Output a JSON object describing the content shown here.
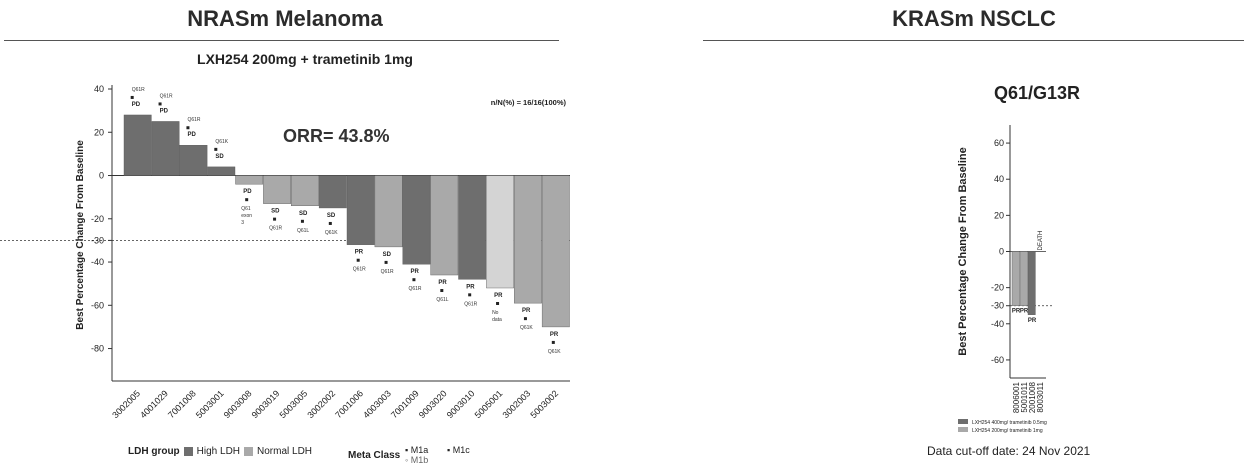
{
  "left": {
    "heading": "NRASm Melanoma",
    "subtitle": "LXH254 200mg + trametinib 1mg",
    "orr": "ORR= 43.8%",
    "nN": "n/N(%) = 16/16(100%)",
    "legend": {
      "group_title": "LDH group",
      "high": "High LDH",
      "normal": "Normal LDH",
      "meta_title": "Meta Class",
      "m1a": "M1a",
      "m1b": "M1b",
      "m1c": "M1c"
    }
  },
  "right": {
    "heading": "KRASm NSCLC",
    "chart_title": "Q61/G13R",
    "legend": {
      "dark": "LXH254 400mg/ trametinib 0.5mg",
      "light": "LXH254 200mg/ trametinib 1mg"
    },
    "cutoff": "Data cut-off date: 24 Nov 2021"
  },
  "colors": {
    "high_ldh": "#6e6e6e",
    "normal_ldh": "#a9a9a9",
    "no_data": "#d4d4d4",
    "axis": "#333333"
  },
  "chart_data": [
    {
      "type": "bar",
      "title": "LXH254 200mg + trametinib 1mg",
      "ylabel": "Best Percentage Change From Baseline",
      "ylim": [
        -95,
        40
      ],
      "yticks": [
        40,
        20,
        0,
        -20,
        -30,
        -40,
        -60,
        -80
      ],
      "reference_line": -30,
      "categories": [
        "3002005",
        "4001029",
        "7001008",
        "5003001",
        "9003008",
        "9003019",
        "5003005",
        "3002002",
        "7001006",
        "4003003",
        "7001009",
        "9003020",
        "9003010",
        "5005001",
        "3002003",
        "5003002"
      ],
      "values": [
        28,
        25,
        14,
        4,
        -4,
        -13,
        -14,
        -15,
        -32,
        -33,
        -41,
        -46,
        -48,
        -52,
        -59,
        -70
      ],
      "ldh_group": [
        "high",
        "high",
        "high",
        "high",
        "normal",
        "normal",
        "normal",
        "high",
        "high",
        "normal",
        "high",
        "normal",
        "high",
        "no_data",
        "normal",
        "normal"
      ],
      "responses": [
        "PD",
        "PD",
        "PD",
        "SD",
        "PD",
        "SD",
        "SD",
        "SD",
        "PR",
        "SD",
        "PR",
        "PR",
        "PR",
        "PR",
        "PR",
        "PR"
      ],
      "mutations": [
        "Q61R",
        "Q61R",
        "Q61R",
        "Q61K",
        "Q61 exon 3",
        "Q61R",
        "Q61L",
        "Q61K",
        "Q61R",
        "Q61R",
        "Q61R",
        "Q61L",
        "Q61R",
        "No data",
        "Q61K",
        "Q61K"
      ],
      "legend": [
        "High LDH",
        "Normal LDH"
      ]
    },
    {
      "type": "bar",
      "title": "Q61/G13R",
      "ylabel": "Best Percentage Change From Baseline",
      "ylim": [
        -70,
        70
      ],
      "yticks": [
        60,
        40,
        20,
        0,
        -20,
        -30,
        -40,
        -60
      ],
      "reference_line": -30,
      "categories": [
        "8006001",
        "5001011",
        "2001008",
        "8003011"
      ],
      "values": [
        -30,
        -30,
        -35,
        0
      ],
      "dose_group": [
        "light",
        "light",
        "dark",
        "light"
      ],
      "responses": [
        "PR",
        "PR",
        "PR",
        "DEATH"
      ],
      "legend": [
        "LXH254 400mg/ trametinib 0.5mg",
        "LXH254 200mg/ trametinib 1mg"
      ]
    }
  ]
}
